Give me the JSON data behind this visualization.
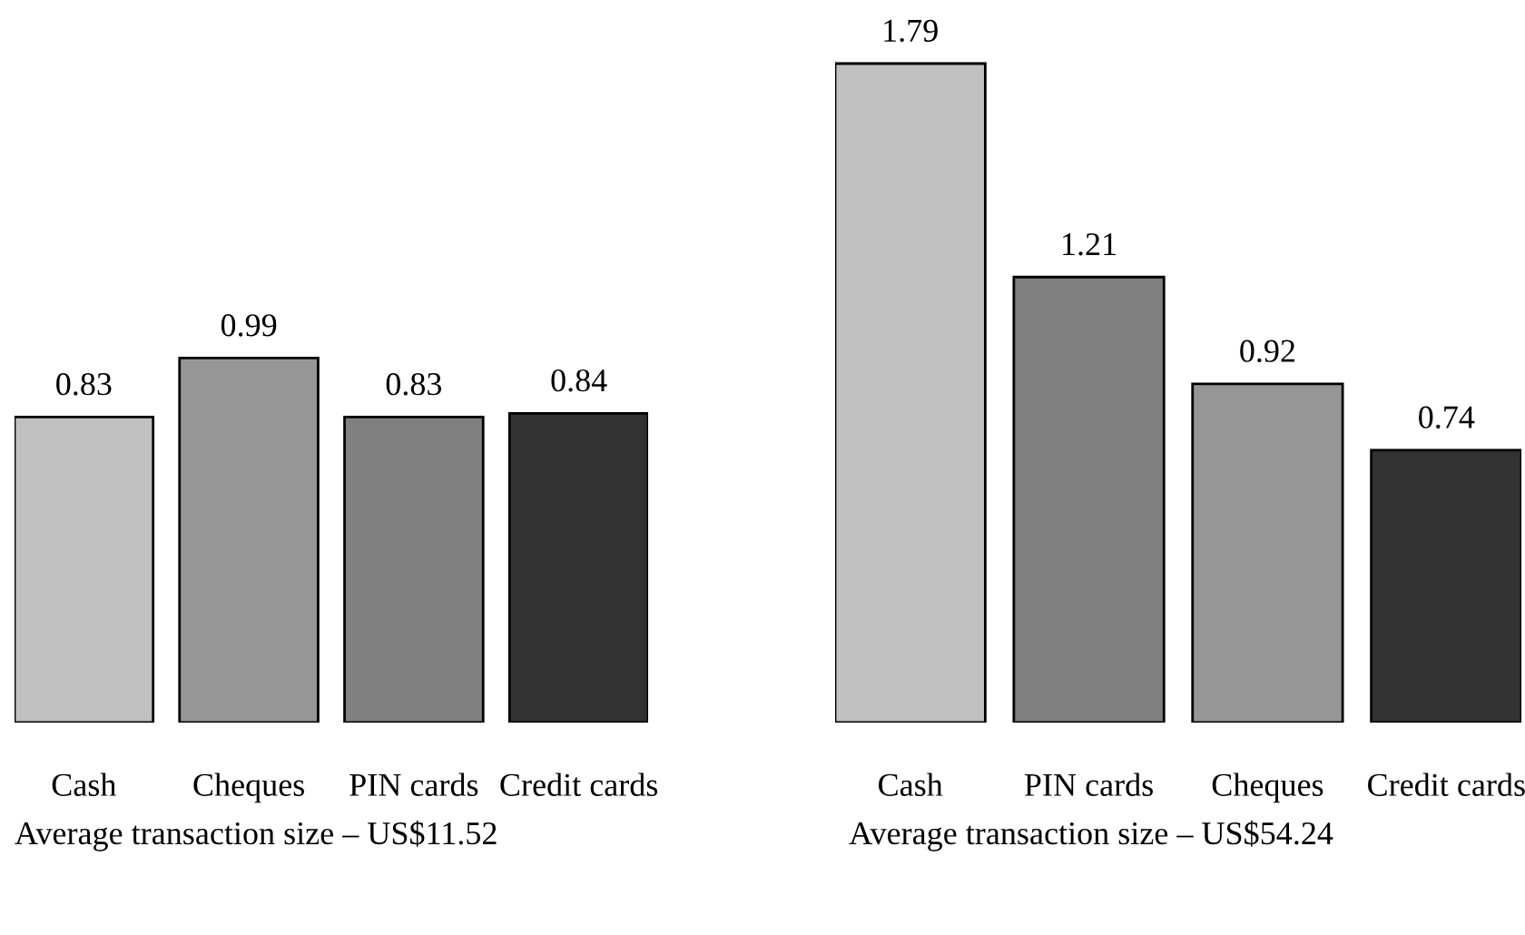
{
  "chart_data": [
    {
      "type": "bar",
      "categories": [
        "Cash",
        "Cheques",
        "PIN cards",
        "Credit cards"
      ],
      "values": [
        0.83,
        0.99,
        0.83,
        0.84
      ],
      "colors": [
        "#c0c0c0",
        "#969696",
        "#808080",
        "#333333"
      ],
      "data_labels": true,
      "annotations": [
        "Average transaction size – US$11.52"
      ]
    },
    {
      "type": "bar",
      "categories": [
        "Cash",
        "PIN cards",
        "Cheques",
        "Credit cards"
      ],
      "values": [
        1.79,
        1.21,
        0.92,
        0.74
      ],
      "colors": [
        "#c0c0c0",
        "#808080",
        "#969696",
        "#333333"
      ],
      "data_labels": true,
      "annotations": [
        "Average transaction size – US$54.24"
      ]
    }
  ]
}
